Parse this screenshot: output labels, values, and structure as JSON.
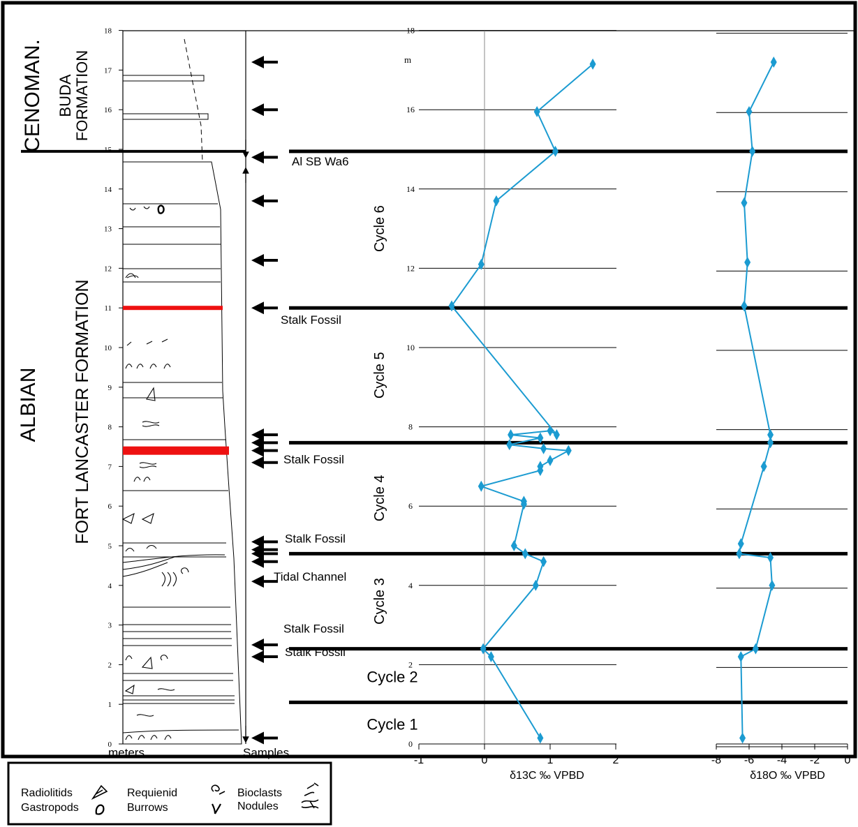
{
  "chart_data": {
    "type": "line",
    "stage_labels": {
      "cenomanian": "CENOMAN.",
      "albian": "ALBIAN"
    },
    "formation_labels": {
      "buda_line1": "BUDA",
      "buda_line2": "FORMATION",
      "fort_lancaster": "FORT LANCASTER FORMATION"
    },
    "column": {
      "axis_label": "meters",
      "samples_label": "Samples",
      "ticks": [
        "0",
        "1",
        "2",
        "3",
        "4",
        "5",
        "6",
        "7",
        "8",
        "9",
        "10",
        "11",
        "12",
        "13",
        "14",
        "15",
        "16",
        "17",
        "18"
      ],
      "red_marker_beds_m": [
        11.0,
        7.4
      ]
    },
    "sample_arrows_m": [
      17.2,
      16.0,
      14.8,
      13.7,
      12.2,
      11.0,
      7.8,
      7.6,
      7.4,
      7.1,
      5.1,
      4.9,
      4.8,
      4.6,
      4.1,
      2.5,
      2.2,
      0.15
    ],
    "sequence_boundaries_m": [
      14.95,
      11.0,
      7.6,
      4.8,
      2.4,
      1.05
    ],
    "annotations": [
      {
        "text": "Al SB Wa6",
        "m": 14.95
      },
      {
        "text": "Stalk Fossil",
        "m": 10.95
      },
      {
        "text": "Stalk Fossil",
        "m": 7.15
      },
      {
        "text": "Stalk Fossil",
        "m": 5.15
      },
      {
        "text": "Tidal Channel",
        "m": 4.3
      },
      {
        "text": "Stalk Fossil",
        "m": 2.95
      },
      {
        "text": "Stalk Fossil",
        "m": 2.25
      }
    ],
    "cycles": [
      {
        "label": "Cycle 6",
        "m": 13.0
      },
      {
        "label": "Cycle 5",
        "m": 9.3
      },
      {
        "label": "Cycle 4",
        "m": 6.2
      },
      {
        "label": "Cycle 3",
        "m": 3.6
      },
      {
        "label": "Cycle 2",
        "m": 1.7
      },
      {
        "label": "Cycle 1",
        "m": 0.5
      }
    ],
    "height_axis": {
      "ticks": [
        "0",
        "2",
        "4",
        "6",
        "8",
        "10",
        "12",
        "14",
        "16",
        "18"
      ],
      "unit": "m",
      "ylim": [
        0,
        18.3
      ]
    },
    "series": [
      {
        "name": "δ13C",
        "xlabel": "δ13C ‰ VPBD",
        "xlim": [
          -1,
          2
        ],
        "xticks": [
          "-1",
          "0",
          "1",
          "2"
        ],
        "color": "#1b9bd1",
        "points": [
          {
            "x": 0.85,
            "y": 0.15
          },
          {
            "x": 0.1,
            "y": 2.2
          },
          {
            "x": -0.02,
            "y": 2.4
          },
          {
            "x": 0.78,
            "y": 4.0
          },
          {
            "x": 0.9,
            "y": 4.6
          },
          {
            "x": 0.62,
            "y": 4.8
          },
          {
            "x": 0.45,
            "y": 5.0
          },
          {
            "x": 0.6,
            "y": 6.05
          },
          {
            "x": 0.6,
            "y": 6.12
          },
          {
            "x": -0.05,
            "y": 6.5
          },
          {
            "x": 0.85,
            "y": 6.9
          },
          {
            "x": 0.85,
            "y": 7.0
          },
          {
            "x": 1.0,
            "y": 7.15
          },
          {
            "x": 1.28,
            "y": 7.4
          },
          {
            "x": 0.9,
            "y": 7.45
          },
          {
            "x": 0.38,
            "y": 7.55
          },
          {
            "x": 0.85,
            "y": 7.72
          },
          {
            "x": 0.4,
            "y": 7.8
          },
          {
            "x": 1.0,
            "y": 7.9
          },
          {
            "x": 1.1,
            "y": 7.8
          },
          {
            "x": -0.5,
            "y": 11.05
          },
          {
            "x": -0.05,
            "y": 12.1
          },
          {
            "x": 0.18,
            "y": 13.7
          },
          {
            "x": 1.08,
            "y": 14.95
          },
          {
            "x": 0.8,
            "y": 15.95
          },
          {
            "x": 1.65,
            "y": 17.15
          }
        ]
      },
      {
        "name": "δ18O",
        "xlabel": "δ18O ‰ VPBD",
        "xlim": [
          -8,
          0
        ],
        "xticks": [
          "-8",
          "-6",
          "-4",
          "-2",
          "0"
        ],
        "color": "#1b9bd1",
        "points": [
          {
            "x": -6.4,
            "y": 0.15
          },
          {
            "x": -6.5,
            "y": 2.2
          },
          {
            "x": -5.6,
            "y": 2.4
          },
          {
            "x": -4.6,
            "y": 4.0
          },
          {
            "x": -4.7,
            "y": 4.7
          },
          {
            "x": -6.6,
            "y": 4.8
          },
          {
            "x": -6.5,
            "y": 5.05
          },
          {
            "x": -5.1,
            "y": 7.0
          },
          {
            "x": -4.7,
            "y": 7.6
          },
          {
            "x": -4.7,
            "y": 7.8
          },
          {
            "x": -6.3,
            "y": 11.05
          },
          {
            "x": -6.1,
            "y": 12.15
          },
          {
            "x": -6.3,
            "y": 13.65
          },
          {
            "x": -5.8,
            "y": 14.95
          },
          {
            "x": -6.0,
            "y": 15.95
          },
          {
            "x": -4.5,
            "y": 17.2
          }
        ]
      }
    ],
    "legend": {
      "items": [
        {
          "label": "Radiolitids",
          "icon": "radiolitid-icon"
        },
        {
          "label": "Gastropods",
          "icon": "gastropod-icon"
        },
        {
          "label": "Requienid",
          "icon": "requienid-icon"
        },
        {
          "label": "Burrows",
          "icon": "burrow-icon"
        },
        {
          "label": "Bioclasts",
          "icon": "bioclast-icon"
        },
        {
          "label": "Nodules",
          "icon": "nodule-icon"
        }
      ]
    }
  }
}
